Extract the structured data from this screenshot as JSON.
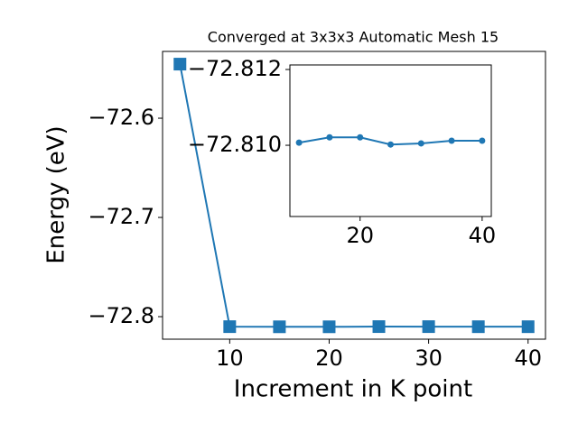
{
  "chart_data": [
    {
      "type": "line",
      "title": "Converged at 3x3x3 Automatic Mesh 15",
      "x_label": "Increment in K point",
      "y_label": "Energy (eV)",
      "x": [
        5,
        10,
        15,
        20,
        25,
        30,
        35,
        40
      ],
      "series": [
        {
          "color": "#1f77b4",
          "marker": "square",
          "values": [
            -72.5455,
            -72.81007,
            -72.81021,
            -72.81021,
            -72.81002,
            -72.81005,
            -72.81012,
            -72.81012
          ]
        }
      ],
      "xlim": [
        3.25,
        41.75
      ],
      "ylim": [
        -72.8227,
        -72.5327
      ],
      "xticks": [
        10,
        20,
        30,
        40
      ],
      "yticks": [
        {
          "value": -72.8,
          "label": "−72.8"
        },
        {
          "value": -72.7,
          "label": "−72.7"
        },
        {
          "value": -72.6,
          "label": "−72.6"
        }
      ]
    },
    {
      "type": "inset-line",
      "color": "#1f77b4",
      "marker": "circle",
      "xlim": [
        8.5,
        41.5
      ],
      "ylim": [
        -72.80812,
        -72.81212
      ],
      "xticks": [
        20,
        40
      ],
      "yticks": [
        {
          "value": -72.812,
          "label": "−72.812"
        },
        {
          "value": -72.81,
          "label": "−72.810"
        }
      ]
    }
  ]
}
